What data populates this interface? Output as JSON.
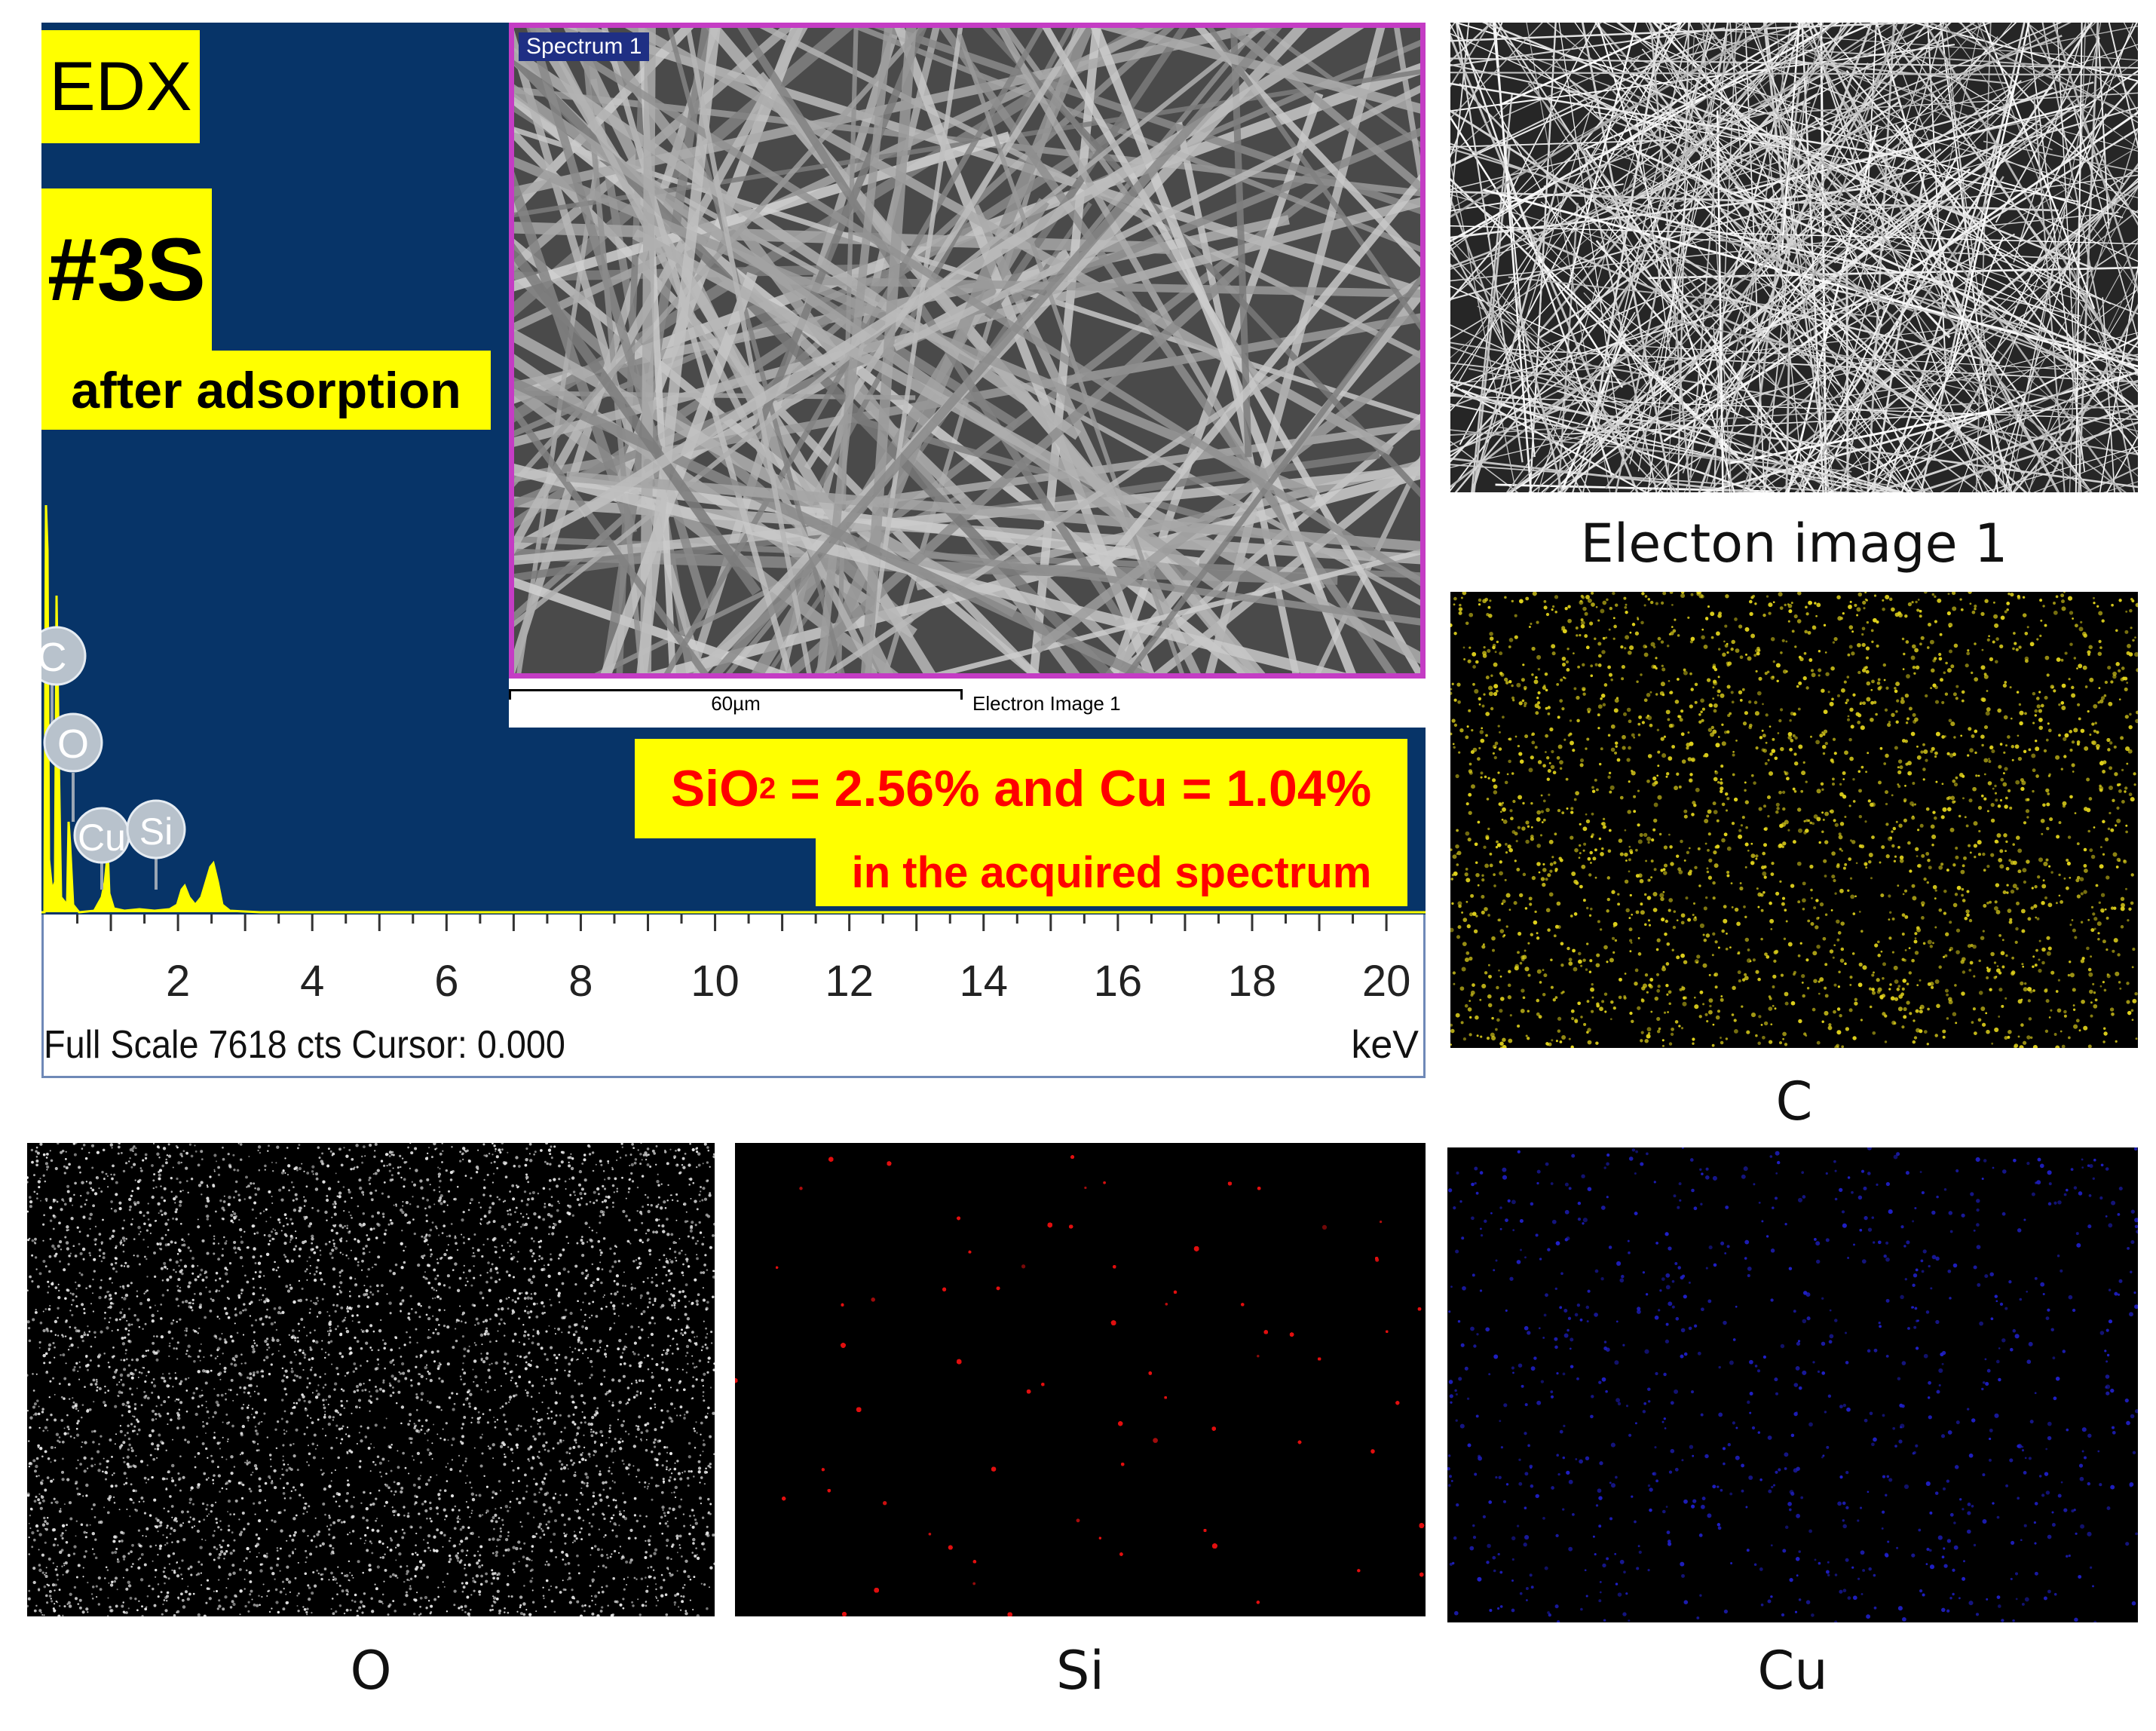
{
  "spectrum": {
    "edx_label": "EDX",
    "sample_id": "#3S",
    "sample_note": "after adsorption",
    "result": {
      "sio2_prefix": "SiO",
      "sio2_subscript": "2",
      "sio2_rest": " = 2.56% and Cu = 1.04%",
      "line2": "in the acquired spectrum"
    },
    "axis": {
      "ticks": [
        "2",
        "4",
        "6",
        "8",
        "10",
        "12",
        "14",
        "16",
        "18",
        "20"
      ],
      "footer": "Full Scale 7618 cts Cursor: 0.000",
      "unit": "keV"
    },
    "peaks": [
      {
        "element": "C",
        "kev": 0.28
      },
      {
        "element": "O",
        "kev": 0.52
      },
      {
        "element": "Cu",
        "kev": 0.93
      },
      {
        "element": "Si",
        "kev": 1.74
      }
    ],
    "colors": {
      "background": "#073468",
      "trace": "#ffff00",
      "label_highlight": "#ffff00",
      "result_text": "#ff0000"
    }
  },
  "sem_inset": {
    "title": "Spectrum 1",
    "scale_bar": "60µm",
    "caption": "Electron Image 1",
    "frame_color": "#c43cc4"
  },
  "maps": {
    "electron": {
      "caption": "Electon image 1"
    },
    "c": {
      "caption": "C",
      "color": "#e0d21c"
    },
    "o": {
      "caption": "O",
      "color": "#e6e6e6"
    },
    "si": {
      "caption": "Si",
      "color": "#e01010"
    },
    "cu": {
      "caption": "Cu",
      "color": "#2020c8"
    }
  }
}
